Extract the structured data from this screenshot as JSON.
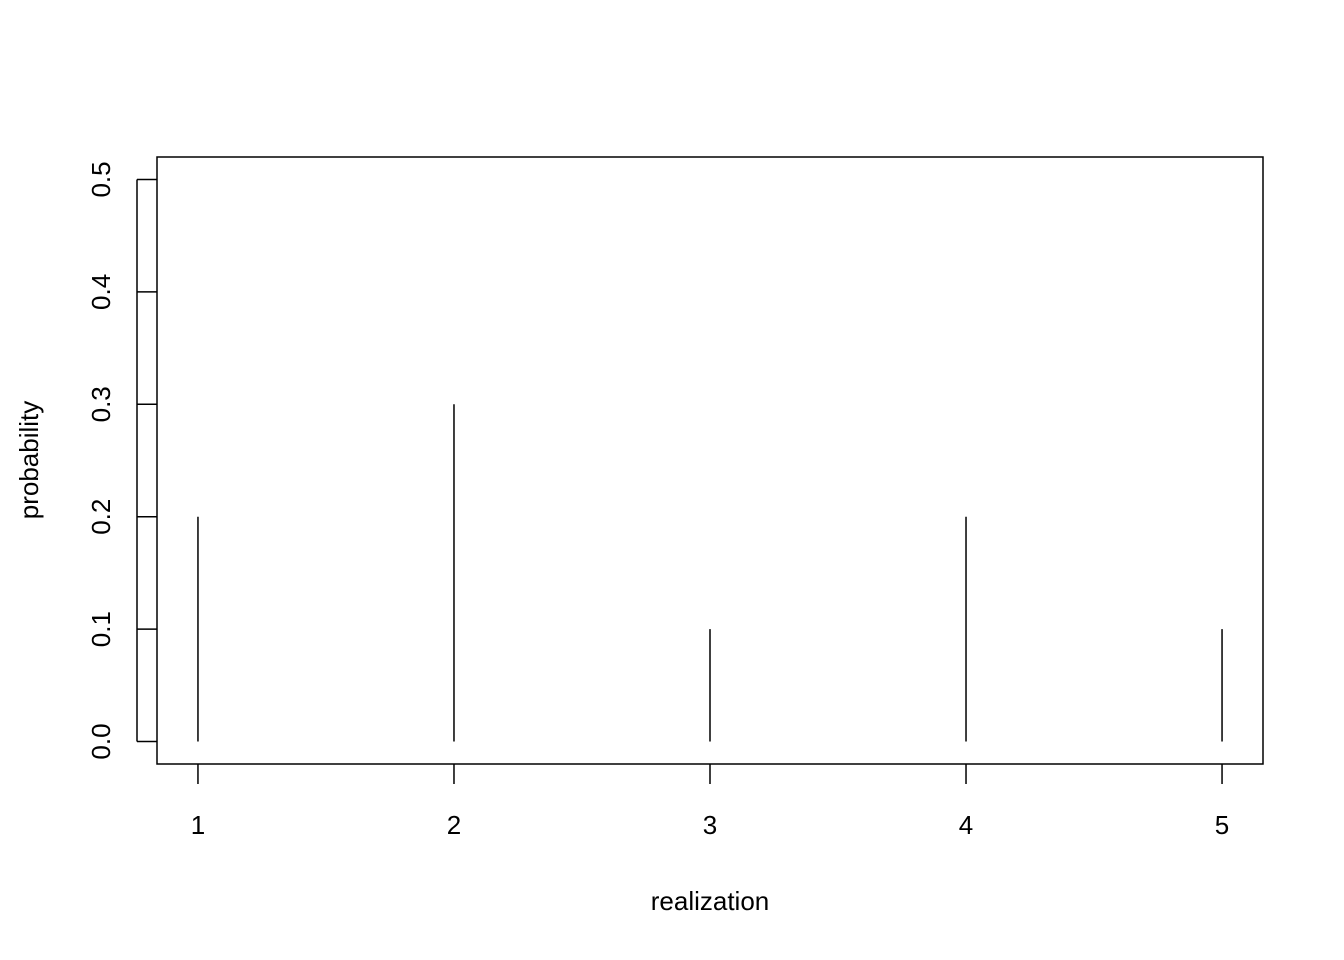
{
  "chart_data": {
    "type": "bar",
    "style": "vertical lines (type h)",
    "x": [
      1,
      2,
      3,
      4,
      5
    ],
    "values": [
      0.2,
      0.3,
      0.1,
      0.2,
      0.1
    ],
    "xlabel": "realization",
    "ylabel": "probability",
    "xlim": [
      0.84,
      5.16
    ],
    "ylim": [
      -0.02,
      0.52
    ],
    "x_ticks": [
      "1",
      "2",
      "3",
      "4",
      "5"
    ],
    "y_ticks": [
      "0.0",
      "0.1",
      "0.2",
      "0.3",
      "0.4",
      "0.5"
    ],
    "grid": false,
    "color": "#000000"
  }
}
